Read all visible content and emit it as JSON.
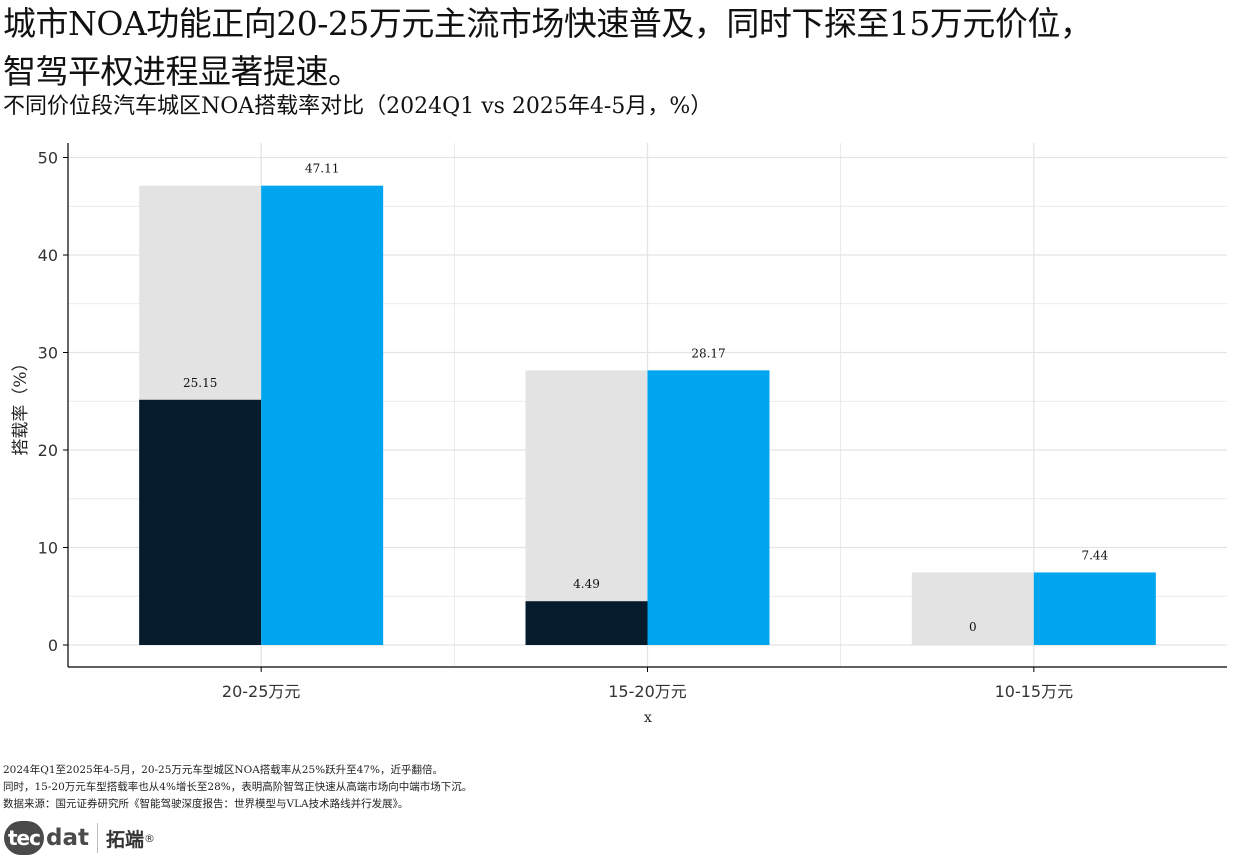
{
  "headline": {
    "line1": "城市NOA功能正向20-25万元主流市场快速普及，同时下探至15万元价位，",
    "line2": "智驾平权进程显著提速。"
  },
  "chart_data": {
    "type": "bar",
    "title": "不同价位段汽车城区NOA搭载率对比（2024Q1 vs 2025年4-5月，%）",
    "xlabel": "x",
    "ylabel": "搭载率（%）",
    "categories": [
      "20-25万元",
      "15-20万元",
      "10-15万元"
    ],
    "ylim": [
      0,
      50
    ],
    "yticks": [
      0,
      10,
      20,
      30,
      40,
      50
    ],
    "series": [
      {
        "name": "2024Q1",
        "values": [
          25.15,
          4.49,
          0
        ],
        "labels": [
          "25.15",
          "4.49",
          "0"
        ]
      },
      {
        "name": "2025年4-5月",
        "values": [
          47.11,
          28.17,
          7.44
        ],
        "labels": [
          "47.11",
          "28.17",
          "7.44"
        ]
      }
    ],
    "colors": {
      "series_2024": "#061c2c",
      "series_2025": "#00a5ef",
      "background_bar": "#e3e3e3",
      "grid": "#e4e4e4"
    },
    "grid": true,
    "legend": "none"
  },
  "notes": [
    "2024年Q1至2025年4-5月，20-25万元车型城区NOA搭载率从25%跃升至47%，近乎翻倍。",
    "同时，15-20万元车型搭载率也从4%增长至28%，表明高阶智驾正快速从高端市场向中端市场下沉。",
    "数据来源：国元证券研究所《智能驾驶深度报告：世界模型与VLA技术路线并行发展》。"
  ],
  "logo": {
    "badge": "tec",
    "rest": "dat",
    "cn": "拓端",
    "reg": "®"
  }
}
